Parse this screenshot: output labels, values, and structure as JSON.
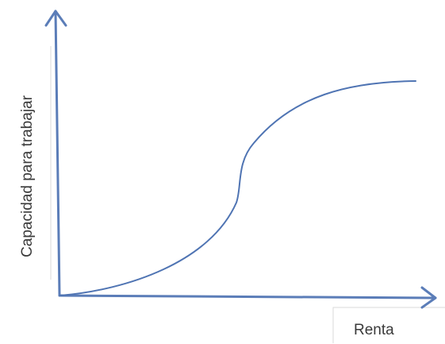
{
  "diagram": {
    "ylabel": "Capacidad para trabajar",
    "xlabel": "Renta",
    "colors": {
      "axis": "#5b7db8",
      "curve": "#4f74b3",
      "label": "#3a3a3a"
    }
  }
}
